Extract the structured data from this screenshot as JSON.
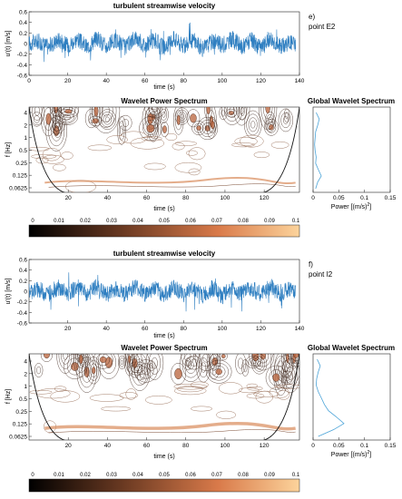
{
  "panel_e": {
    "label": "e)",
    "point": "point E2",
    "top_title": "turbulent streamwise velocity",
    "wps_title": "Wavelet Power Spectrum",
    "gws_title": "Global Wavelet Spectrum",
    "colorbar_ticks": [
      "0",
      "0.01",
      "0.02",
      "0.03",
      "0.04",
      "0.05",
      "0.06",
      "0.07",
      "0.08",
      "0.09",
      "0.1"
    ]
  },
  "panel_f": {
    "label": "f)",
    "point": "point I2",
    "top_title": "turbulent streamwise velocity",
    "wps_title": "Wavelet Power Spectrum",
    "gws_title": "Global Wavelet Spectrum",
    "colorbar_ticks": [
      "0",
      "0.01",
      "0.02",
      "0.03",
      "0.04",
      "0.05",
      "0.06",
      "0.07",
      "0.08",
      "0.09",
      "0.1"
    ]
  },
  "axes": {
    "ts_ylabel": "u'(t) [m/s]",
    "ts_xlabel": "time (s)",
    "ts_e_yticks": [
      "0.6",
      "0.4",
      "0.2",
      "0",
      "-0.2",
      "-0.4",
      "-0.6"
    ],
    "ts_f_yticks": [
      "0.6",
      "0.4",
      "0.2",
      "0",
      "-0.2",
      "-0.4",
      "-0.6"
    ],
    "ts_e_xticks": [
      "0",
      "20",
      "40",
      "60",
      "80",
      "100",
      "120",
      "140"
    ],
    "ts_f_xticks": [
      "20",
      "40",
      "60",
      "80",
      "100",
      "120",
      "140"
    ],
    "wps_ylabel": "f [Hz]",
    "wps_xlabel": "time (s)",
    "wps_yticks": [
      "4",
      "2",
      "1",
      "0.5",
      "0.25",
      "0.125",
      "0.0625"
    ],
    "wps_xticks": [
      "20",
      "40",
      "60",
      "80",
      "100",
      "120"
    ],
    "gws_xlabel": "Power [(m/s)",
    "gws_xlabel_sup": "2",
    "gws_xlabel_end": "]",
    "gws_xticks": [
      "0",
      "0.05",
      "0.1",
      "0.15"
    ]
  },
  "chart_data": [
    {
      "type": "line",
      "title": "turbulent streamwise velocity",
      "panel": "e) point E2",
      "xlabel": "time (s)",
      "ylabel": "u'(t) [m/s]",
      "xlim": [
        0,
        140
      ],
      "ylim": [
        -0.6,
        0.6
      ],
      "x": [
        0,
        5,
        10,
        15,
        20,
        25,
        30,
        35,
        40,
        45,
        50,
        55,
        60,
        65,
        70,
        75,
        80,
        85,
        90,
        95,
        100,
        105,
        110,
        115,
        120,
        125,
        130,
        135,
        138
      ],
      "values": [
        0.0,
        0.12,
        -0.18,
        0.22,
        -0.1,
        0.25,
        -0.2,
        0.3,
        -0.15,
        0.18,
        -0.22,
        0.35,
        -0.12,
        0.2,
        -0.25,
        0.28,
        -0.18,
        0.22,
        -0.3,
        0.15,
        -0.1,
        0.26,
        -0.2,
        0.18,
        -0.28,
        0.3,
        -0.15,
        0.1,
        0.0
      ]
    },
    {
      "type": "heatmap",
      "title": "Wavelet Power Spectrum",
      "panel": "e) point E2",
      "xlabel": "time (s)",
      "ylabel": "f [Hz]",
      "xlim": [
        0,
        138
      ],
      "yscale": "log2",
      "ylim": [
        0.0625,
        4
      ],
      "colorbar": [
        0,
        0.1
      ]
    },
    {
      "type": "line",
      "title": "Global Wavelet Spectrum",
      "panel": "e) point E2",
      "xlabel": "Power [(m/s)^2]",
      "xlim": [
        0,
        0.15
      ],
      "yscale": "log2",
      "ylim": [
        0.0625,
        4
      ],
      "y": [
        4,
        2.8,
        2,
        1.4,
        1,
        0.7,
        0.5,
        0.35,
        0.25,
        0.18,
        0.125,
        0.09,
        0.0625
      ],
      "values": [
        0.006,
        0.012,
        0.009,
        0.005,
        0.004,
        0.003,
        0.004,
        0.006,
        0.005,
        0.01,
        0.016,
        0.009,
        0.005
      ]
    },
    {
      "type": "line",
      "title": "turbulent streamwise velocity",
      "panel": "f) point I2",
      "xlabel": "time (s)",
      "ylabel": "u'(t) [m/s]",
      "xlim": [
        0,
        140
      ],
      "ylim": [
        -0.6,
        0.6
      ],
      "x": [
        0,
        5,
        10,
        15,
        20,
        25,
        30,
        35,
        40,
        45,
        50,
        55,
        60,
        65,
        70,
        75,
        80,
        85,
        90,
        95,
        100,
        105,
        110,
        115,
        120,
        125,
        130,
        135,
        138
      ],
      "values": [
        0.0,
        0.1,
        -0.15,
        0.2,
        -0.12,
        0.22,
        -0.18,
        0.25,
        -0.2,
        0.15,
        -0.18,
        0.3,
        -0.15,
        0.18,
        -0.22,
        0.24,
        -0.16,
        0.2,
        -0.25,
        0.18,
        -0.3,
        0.22,
        -0.15,
        0.2,
        -0.2,
        0.25,
        -0.12,
        0.15,
        0.0
      ]
    },
    {
      "type": "heatmap",
      "title": "Wavelet Power Spectrum",
      "panel": "f) point I2",
      "xlabel": "time (s)",
      "ylabel": "f [Hz]",
      "xlim": [
        0,
        138
      ],
      "yscale": "log2",
      "ylim": [
        0.0625,
        4
      ],
      "colorbar": [
        0,
        0.1
      ]
    },
    {
      "type": "line",
      "title": "Global Wavelet Spectrum",
      "panel": "f) point I2",
      "xlabel": "Power [(m/s)^2]",
      "xlim": [
        0,
        0.15
      ],
      "yscale": "log2",
      "ylim": [
        0.0625,
        4
      ],
      "y": [
        4,
        2.8,
        2,
        1.4,
        1,
        0.7,
        0.5,
        0.35,
        0.25,
        0.18,
        0.125,
        0.09,
        0.0625
      ],
      "values": [
        0.008,
        0.014,
        0.01,
        0.007,
        0.006,
        0.01,
        0.016,
        0.022,
        0.03,
        0.045,
        0.06,
        0.04,
        0.01
      ]
    }
  ],
  "colors": {
    "series": "#2f7fc1",
    "contour": "#3a2218",
    "cone": "#111111",
    "cmap_low": "#000000",
    "cmap_mid": "#d97a4a",
    "cmap_high": "#fcd39b"
  }
}
